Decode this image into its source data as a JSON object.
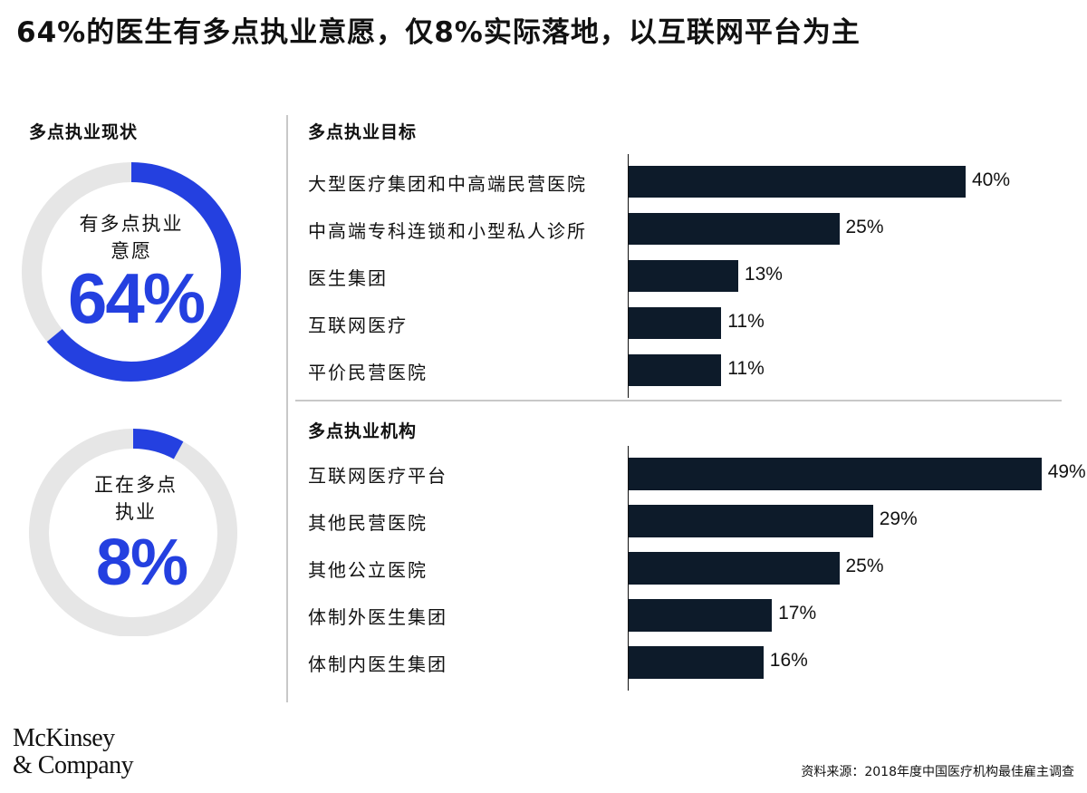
{
  "title": "64%的医生有多点执业意愿，仅8%实际落地，以互联网平台为主",
  "left_panel": {
    "label": "多点执业现状",
    "donut1": {
      "caption_line1": "有多点执业",
      "caption_line2": "意愿",
      "value_text": "64%",
      "value": 64
    },
    "donut2": {
      "caption_line1": "正在多点",
      "caption_line2": "执业",
      "value_text": "8%",
      "value": 8
    }
  },
  "colors": {
    "accent": "#2440e0",
    "track": "#e6e6e6",
    "bar": "#0d1b2a",
    "divider": "#c8c8c8"
  },
  "chart_data": [
    {
      "type": "bar",
      "orientation": "horizontal",
      "title": "多点执业目标",
      "categories": [
        "大型医疗集团和中高端民营医院",
        "中高端专科连锁和小型私人诊所",
        "医生集团",
        "互联网医疗",
        "平价民营医院"
      ],
      "values": [
        40,
        25,
        13,
        11,
        11
      ],
      "value_labels": [
        "40%",
        "25%",
        "13%",
        "11%",
        "11%"
      ]
    },
    {
      "type": "bar",
      "orientation": "horizontal",
      "title": "多点执业机构",
      "categories": [
        "互联网医疗平台",
        "其他民营医院",
        "其他公立医院",
        "体制外医生集团",
        "体制内医生集团"
      ],
      "values": [
        49,
        29,
        25,
        17,
        16
      ],
      "value_labels": [
        "49%",
        "29%",
        "25%",
        "17%",
        "16%"
      ]
    }
  ],
  "logo": {
    "line1": "McKinsey",
    "line2": "& Company"
  },
  "source": "资料来源：2018年度中国医疗机构最佳雇主调查"
}
